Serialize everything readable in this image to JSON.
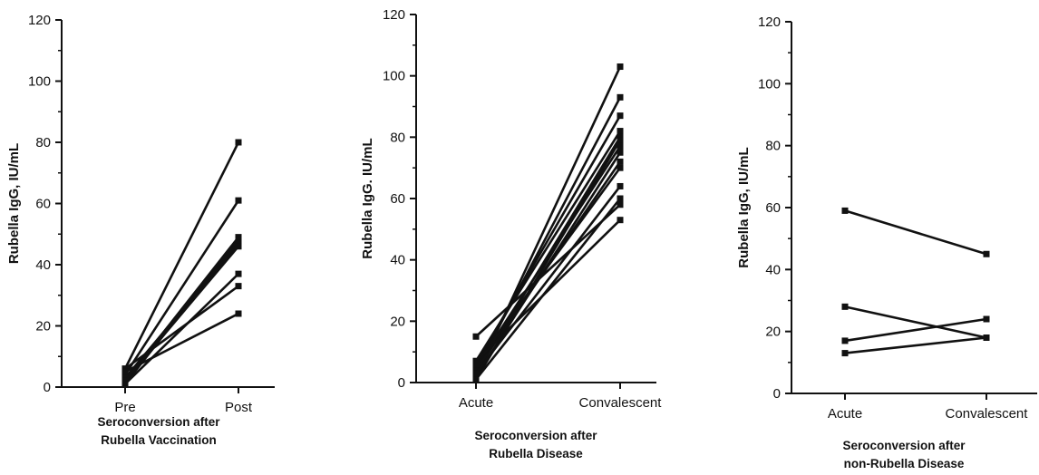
{
  "chart_data": [
    {
      "type": "line",
      "xlabel": [
        "Seroconversion after",
        "Rubella Vaccination"
      ],
      "ylabel": "Rubella  IgG,   IU/mL",
      "categories": [
        "Pre",
        "Post"
      ],
      "ylim": [
        0,
        120
      ],
      "yticks": [
        0,
        20,
        40,
        60,
        80,
        100,
        120
      ],
      "grid": false,
      "series": [
        {
          "values": [
            6,
            80
          ]
        },
        {
          "values": [
            4,
            61
          ]
        },
        {
          "values": [
            2,
            49
          ]
        },
        {
          "values": [
            1,
            48
          ]
        },
        {
          "values": [
            3,
            47
          ]
        },
        {
          "values": [
            2,
            46
          ]
        },
        {
          "values": [
            1,
            37
          ]
        },
        {
          "values": [
            6,
            33
          ]
        },
        {
          "values": [
            5,
            24
          ]
        }
      ]
    },
    {
      "type": "line",
      "xlabel": [
        "Seroconversion after",
        "Rubella Disease"
      ],
      "ylabel": "Rubella  IgG.  IU/mL",
      "categories": [
        "Acute",
        "Convalescent"
      ],
      "ylim": [
        0,
        120
      ],
      "yticks": [
        0,
        20,
        40,
        60,
        80,
        100,
        120
      ],
      "grid": false,
      "series": [
        {
          "values": [
            15,
            58
          ]
        },
        {
          "values": [
            2,
            103
          ]
        },
        {
          "values": [
            4,
            93
          ]
        },
        {
          "values": [
            6,
            87
          ]
        },
        {
          "values": [
            7,
            82
          ]
        },
        {
          "values": [
            3,
            80
          ]
        },
        {
          "values": [
            1,
            79
          ]
        },
        {
          "values": [
            5,
            77
          ]
        },
        {
          "values": [
            2,
            75
          ]
        },
        {
          "values": [
            4,
            72
          ]
        },
        {
          "values": [
            6,
            70
          ]
        },
        {
          "values": [
            3,
            64
          ]
        },
        {
          "values": [
            1,
            60
          ]
        },
        {
          "values": [
            7,
            53
          ]
        }
      ]
    },
    {
      "type": "line",
      "xlabel": [
        "Seroconversion after",
        "non-Rubella Disease"
      ],
      "ylabel": "Rubella  IgG,   IU/mL",
      "categories": [
        "Acute",
        "Convalescent"
      ],
      "ylim": [
        0,
        120
      ],
      "yticks": [
        0,
        20,
        40,
        60,
        80,
        100,
        120
      ],
      "grid": false,
      "series": [
        {
          "values": [
            59,
            45
          ]
        },
        {
          "values": [
            28,
            18
          ]
        },
        {
          "values": [
            17,
            24
          ]
        },
        {
          "values": [
            13,
            18
          ]
        }
      ]
    }
  ],
  "colors": {
    "ink": "#111111",
    "background": "#ffffff"
  }
}
